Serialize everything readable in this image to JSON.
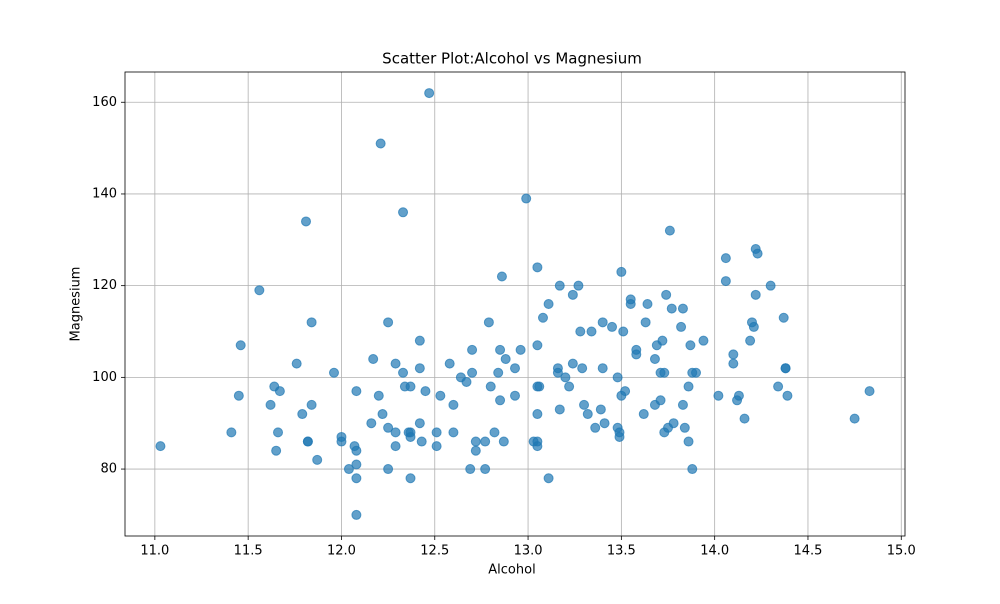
{
  "chart_data": {
    "type": "scatter",
    "title": "Scatter Plot:Alcohol vs Magnesium",
    "xlabel": "Alcohol",
    "ylabel": "Magnesium",
    "color": "#1f77b4",
    "opacity": 0.7,
    "grid": true,
    "xlim": [
      10.84,
      15.02
    ],
    "ylim": [
      65.4,
      166.6
    ],
    "xticks": [
      {
        "value": 11.0,
        "label": "11.0"
      },
      11.5,
      {
        "value": 12.0,
        "label": "12.0"
      },
      12.5,
      {
        "value": 13.0,
        "label": "13.0"
      },
      13.5,
      {
        "value": 14.0,
        "label": "14.0"
      },
      14.5,
      {
        "value": 15.0,
        "label": "15.0"
      }
    ],
    "yticks": [
      80,
      100,
      120,
      140,
      160
    ],
    "x": [
      11.03,
      11.41,
      11.45,
      11.46,
      11.56,
      11.62,
      11.64,
      11.65,
      11.66,
      11.67,
      11.76,
      11.79,
      11.81,
      11.82,
      11.82,
      11.84,
      11.84,
      11.87,
      11.96,
      12.0,
      12.0,
      12.04,
      12.07,
      12.08,
      12.08,
      12.08,
      12.08,
      12.08,
      12.16,
      12.17,
      12.2,
      12.21,
      12.22,
      12.25,
      12.25,
      12.25,
      12.29,
      12.29,
      12.29,
      12.33,
      12.33,
      12.34,
      12.36,
      12.37,
      12.37,
      12.37,
      12.37,
      12.42,
      12.42,
      12.42,
      12.43,
      12.45,
      12.47,
      12.51,
      12.51,
      12.53,
      12.58,
      12.6,
      12.6,
      12.64,
      12.67,
      12.69,
      12.7,
      12.7,
      12.72,
      12.72,
      12.77,
      12.77,
      12.79,
      12.8,
      12.82,
      12.84,
      12.85,
      12.85,
      12.86,
      12.87,
      12.88,
      12.93,
      12.93,
      12.96,
      12.99,
      13.03,
      13.05,
      13.05,
      13.05,
      13.05,
      13.05,
      13.05,
      13.06,
      13.08,
      13.11,
      13.11,
      13.16,
      13.16,
      13.17,
      13.17,
      13.2,
      13.22,
      13.24,
      13.24,
      13.27,
      13.28,
      13.29,
      13.3,
      13.32,
      13.34,
      13.36,
      13.39,
      13.4,
      13.4,
      13.41,
      13.45,
      13.48,
      13.48,
      13.49,
      13.49,
      13.5,
      13.5,
      13.51,
      13.52,
      13.55,
      13.55,
      13.58,
      13.58,
      13.62,
      13.63,
      13.64,
      13.68,
      13.68,
      13.69,
      13.71,
      13.71,
      13.72,
      13.73,
      13.73,
      13.74,
      13.75,
      13.76,
      13.77,
      13.78,
      13.82,
      13.83,
      13.83,
      13.84,
      13.86,
      13.86,
      13.87,
      13.88,
      13.88,
      13.9,
      13.94,
      14.02,
      14.06,
      14.06,
      14.1,
      14.1,
      14.12,
      14.13,
      14.16,
      14.19,
      14.2,
      14.21,
      14.22,
      14.22,
      14.23,
      14.3,
      14.34,
      14.37,
      14.38,
      14.38,
      14.39,
      14.75,
      14.83
    ],
    "values": [
      85,
      88,
      96,
      107,
      119,
      94,
      98,
      84,
      88,
      97,
      103,
      92,
      134,
      86,
      86,
      94,
      112,
      82,
      101,
      87,
      86,
      80,
      85,
      84,
      81,
      78,
      70,
      97,
      90,
      104,
      96,
      151,
      92,
      112,
      89,
      80,
      88,
      85,
      103,
      101,
      136,
      98,
      88,
      87,
      78,
      98,
      88,
      108,
      90,
      102,
      86,
      97,
      162,
      85,
      88,
      96,
      103,
      88,
      94,
      100,
      99,
      80,
      106,
      101,
      86,
      84,
      80,
      86,
      112,
      98,
      88,
      101,
      106,
      95,
      122,
      86,
      104,
      102,
      96,
      106,
      139,
      86,
      86,
      124,
      107,
      92,
      85,
      98,
      98,
      113,
      78,
      116,
      102,
      101,
      120,
      93,
      100,
      98,
      103,
      118,
      120,
      110,
      102,
      94,
      92,
      110,
      89,
      93,
      112,
      102,
      90,
      111,
      100,
      89,
      88,
      87,
      123,
      96,
      110,
      97,
      117,
      116,
      106,
      105,
      92,
      112,
      116,
      94,
      104,
      107,
      95,
      101,
      108,
      88,
      101,
      118,
      89,
      132,
      115,
      90,
      111,
      94,
      115,
      89,
      86,
      98,
      107,
      80,
      101,
      101,
      108,
      96,
      126,
      121,
      103,
      105,
      95,
      96,
      91,
      108,
      112,
      111,
      118,
      128,
      127,
      120,
      98,
      113,
      102,
      102,
      96,
      91,
      97
    ]
  }
}
